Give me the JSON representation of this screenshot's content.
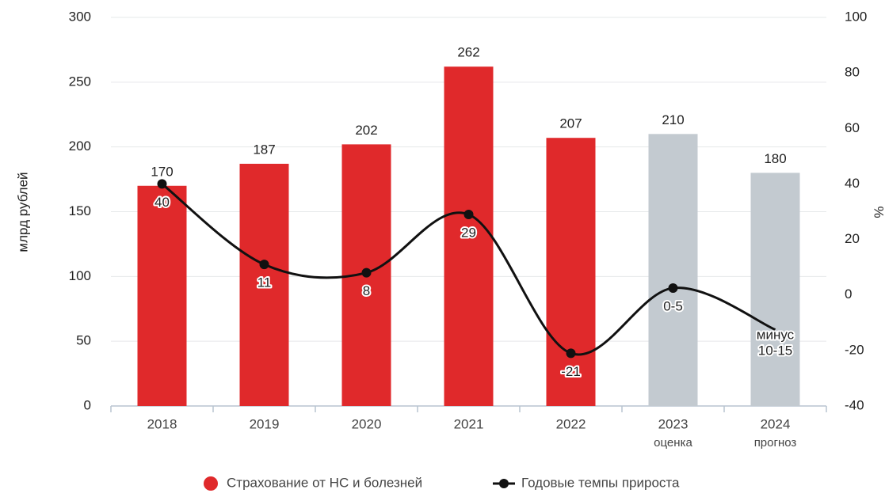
{
  "chart_data": {
    "type": "bar",
    "categories": [
      "2018",
      "2019",
      "2020",
      "2021",
      "2022",
      "2023",
      "2024"
    ],
    "category_notes": [
      null,
      null,
      null,
      null,
      null,
      "оценка",
      "прогноз"
    ],
    "ylabel": "млрд рублей",
    "y2label": "%",
    "ylim": [
      0,
      300
    ],
    "yticks": [
      0,
      50,
      100,
      150,
      200,
      250,
      300
    ],
    "y2lim": [
      -40,
      100
    ],
    "y2ticks": [
      -40,
      -20,
      0,
      20,
      40,
      60,
      80,
      100
    ],
    "grid": true,
    "series": [
      {
        "name": "Страхование от НС и болезней",
        "type": "bar",
        "colors": [
          "#e0292b",
          "#e0292b",
          "#e0292b",
          "#e0292b",
          "#e0292b",
          "#c3cad0",
          "#c3cad0"
        ],
        "color": "#e0292b",
        "values": [
          170,
          187,
          202,
          262,
          207,
          210,
          180
        ]
      },
      {
        "name": "Годовые темпы прироста",
        "type": "line",
        "axis": "y2",
        "color": "#111111",
        "values": [
          40,
          11,
          8,
          29,
          -21,
          2.5,
          -12.5
        ],
        "value_labels": [
          "40",
          "11",
          "8",
          "29",
          "-21",
          "0-5",
          "минус 10-15"
        ]
      }
    ]
  }
}
